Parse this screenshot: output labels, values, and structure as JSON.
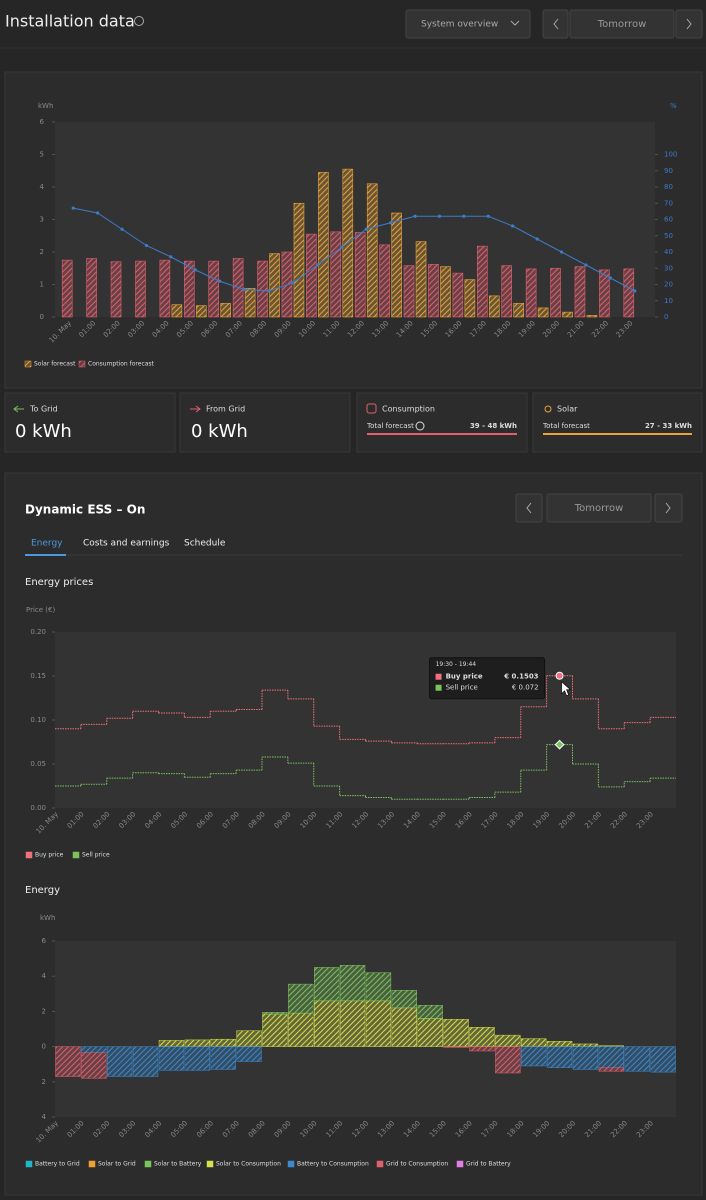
{
  "header": {
    "title": "Installation data",
    "view_select": "System overview",
    "day": "Tomorrow"
  },
  "cards": [
    {
      "title": "To Grid",
      "value": "0 kWh"
    },
    {
      "title": "From Grid",
      "value": "0 kWh"
    },
    {
      "title": "Consumption",
      "label": "Total forecast",
      "value": "39 - 48 kWh"
    },
    {
      "title": "Solar",
      "label": "Total forecast",
      "value": "27 - 33 kWh"
    }
  ],
  "ess": {
    "title": "Dynamic ESS – On",
    "day": "Tomorrow",
    "tabs": [
      "Energy",
      "Costs and earnings",
      "Schedule"
    ],
    "prices_title": "Energy prices",
    "energy_title": "Energy"
  },
  "chart_data": [
    {
      "type": "bar",
      "y_label": "kWh",
      "y2_label": "%",
      "categories": [
        "10. May",
        "01:00",
        "02:00",
        "03:00",
        "04:00",
        "05:00",
        "06:00",
        "07:00",
        "08:00",
        "09:00",
        "10:00",
        "11:00",
        "12:00",
        "13:00",
        "14:00",
        "15:00",
        "16:00",
        "17:00",
        "18:00",
        "19:00",
        "20:00",
        "21:00",
        "22:00",
        "23:00"
      ],
      "series": [
        {
          "name": "Solar forecast",
          "color": "#e8a33a",
          "values": [
            0,
            0,
            0,
            0,
            0.38,
            0.35,
            0.42,
            0.88,
            1.95,
            3.5,
            4.45,
            4.55,
            4.1,
            3.2,
            2.32,
            1.55,
            1.15,
            0.65,
            0.42,
            0.28,
            0.15,
            0.05,
            0,
            0
          ]
        },
        {
          "name": "Consumption forecast",
          "color": "#e0606e",
          "values": [
            1.75,
            1.8,
            1.7,
            1.72,
            1.75,
            1.72,
            1.72,
            1.8,
            1.72,
            2.0,
            2.55,
            2.62,
            2.6,
            2.22,
            1.58,
            1.62,
            1.35,
            2.18,
            1.58,
            1.48,
            1.5,
            1.55,
            1.45,
            1.48
          ]
        },
        {
          "type": "line",
          "axis": "y2",
          "color": "#3d7cc9",
          "values": [
            67,
            64,
            54,
            44,
            37,
            29,
            22,
            17,
            16,
            21,
            32,
            43,
            54,
            58,
            62,
            62,
            62,
            62,
            56,
            48,
            40,
            32,
            24,
            16
          ]
        }
      ],
      "ylim": [
        0,
        6
      ],
      "yticks": [
        0,
        1,
        2,
        3,
        4,
        5,
        6
      ],
      "y2lim": [
        0,
        120
      ],
      "y2ticks": [
        0,
        10,
        20,
        30,
        40,
        50,
        60,
        70,
        80,
        90,
        100
      ]
    },
    {
      "type": "step",
      "y_label": "Price (€)",
      "tooltip_title": "19:30 - 19:44",
      "categories": [
        "10. May",
        "01:00",
        "02:00",
        "03:00",
        "04:00",
        "05:00",
        "06:00",
        "07:00",
        "08:00",
        "09:00",
        "10:00",
        "11:00",
        "12:00",
        "13:00",
        "14:00",
        "15:00",
        "16:00",
        "17:00",
        "18:00",
        "19:00",
        "20:00",
        "21:00",
        "22:00",
        "23:00"
      ],
      "series": [
        {
          "name": "Buy price",
          "color": "#f0707c",
          "values": [
            0.09,
            0.095,
            0.102,
            0.11,
            0.108,
            0.103,
            0.11,
            0.112,
            0.134,
            0.124,
            0.093,
            0.078,
            0.076,
            0.074,
            0.073,
            0.073,
            0.074,
            0.08,
            0.115,
            0.1503,
            0.124,
            0.09,
            0.097,
            0.103
          ],
          "value_labels": [
            null,
            null,
            null,
            null,
            null,
            null,
            null,
            null,
            null,
            null,
            null,
            null,
            null,
            null,
            null,
            null,
            null,
            null,
            null,
            "€ 0.1503",
            null,
            null,
            null,
            null
          ]
        },
        {
          "name": "Sell price",
          "color": "#7cc35c",
          "values": [
            0.025,
            0.027,
            0.034,
            0.04,
            0.039,
            0.035,
            0.039,
            0.043,
            0.058,
            0.051,
            0.025,
            0.014,
            0.012,
            0.01,
            0.01,
            0.01,
            0.012,
            0.018,
            0.043,
            0.072,
            0.05,
            0.024,
            0.03,
            0.034
          ],
          "value_labels": [
            null,
            null,
            null,
            null,
            null,
            null,
            null,
            null,
            null,
            null,
            null,
            null,
            null,
            null,
            null,
            null,
            null,
            null,
            null,
            "€ 0.072",
            null,
            null,
            null,
            null
          ]
        }
      ],
      "ylim": [
        0,
        0.2
      ],
      "yticks": [
        {
          "value": 0,
          "label": "0.00"
        },
        {
          "value": 0.05,
          "label": "0.05"
        },
        {
          "value": 0.1,
          "label": "0.10"
        },
        {
          "value": 0.15,
          "label": "0.15"
        },
        {
          "value": 0.2,
          "label": "0.20"
        }
      ]
    },
    {
      "type": "stacked_bar",
      "y_label": "kWh",
      "categories": [
        "10. May",
        "01:00",
        "02:00",
        "03:00",
        "04:00",
        "05:00",
        "06:00",
        "07:00",
        "08:00",
        "09:00",
        "10:00",
        "11:00",
        "12:00",
        "13:00",
        "14:00",
        "15:00",
        "16:00",
        "17:00",
        "18:00",
        "19:00",
        "20:00",
        "21:00",
        "22:00",
        "23:00"
      ],
      "series": [
        {
          "name": "Battery to Grid",
          "color": "#1fb8c9",
          "values": [
            0,
            0,
            0,
            0,
            0,
            0,
            0,
            0,
            0,
            0,
            0,
            0,
            0,
            0,
            0,
            0,
            0,
            0,
            0,
            0,
            0,
            0,
            0,
            0
          ]
        },
        {
          "name": "Solar to Grid",
          "color": "#f0a030",
          "values": [
            0,
            0,
            0,
            0,
            0,
            0,
            0,
            0,
            0,
            0,
            0,
            0,
            0,
            0,
            0,
            0,
            0,
            0,
            0,
            0,
            0,
            0,
            0,
            0
          ]
        },
        {
          "name": "Solar to Battery",
          "color": "#7cc35c",
          "values": [
            0,
            0,
            0,
            0,
            0,
            0,
            0,
            0,
            0.1,
            1.65,
            1.9,
            2.02,
            1.6,
            1.0,
            0.75,
            0,
            0,
            0,
            0,
            0,
            0,
            0,
            0,
            0
          ]
        },
        {
          "name": "Solar to Consumption",
          "color": "#d6e04a",
          "values": [
            0,
            0,
            0,
            0,
            0.35,
            0.38,
            0.42,
            0.9,
            1.85,
            1.9,
            2.6,
            2.6,
            2.6,
            2.2,
            1.6,
            1.55,
            1.1,
            0.65,
            0.45,
            0.3,
            0.15,
            0.05,
            0,
            0
          ]
        },
        {
          "name": "Battery to Consumption",
          "color": "#3a8ad0",
          "values": [
            0,
            -0.35,
            -1.7,
            -1.7,
            -1.35,
            -1.35,
            -1.3,
            -0.85,
            0,
            0,
            0,
            0,
            0,
            0,
            0,
            0,
            0,
            0,
            -1.1,
            -1.2,
            -1.3,
            -1.2,
            -1.4,
            -1.45
          ]
        },
        {
          "name": "Grid to Consumption",
          "color": "#e0606e",
          "values": [
            -1.7,
            -1.45,
            0,
            0,
            0,
            0,
            0,
            0,
            0,
            0,
            0,
            0,
            0,
            0,
            0,
            -0.05,
            -0.25,
            -1.5,
            0,
            0,
            0,
            -0.2,
            0,
            0
          ]
        },
        {
          "name": "Grid to Battery",
          "color": "#e080e0",
          "values": [
            0,
            0,
            0,
            0,
            0,
            0,
            0,
            0,
            0,
            0,
            0,
            0,
            0,
            0,
            0,
            0,
            0,
            0,
            0,
            0,
            0,
            0,
            0,
            0
          ]
        }
      ],
      "ylim": [
        -4,
        6
      ],
      "yticks": [
        {
          "value": -4,
          "label": "4"
        },
        {
          "value": -2,
          "label": "2"
        },
        0,
        {
          "value": 2,
          "label": "2"
        },
        {
          "value": 4,
          "label": "4"
        },
        6
      ]
    }
  ]
}
